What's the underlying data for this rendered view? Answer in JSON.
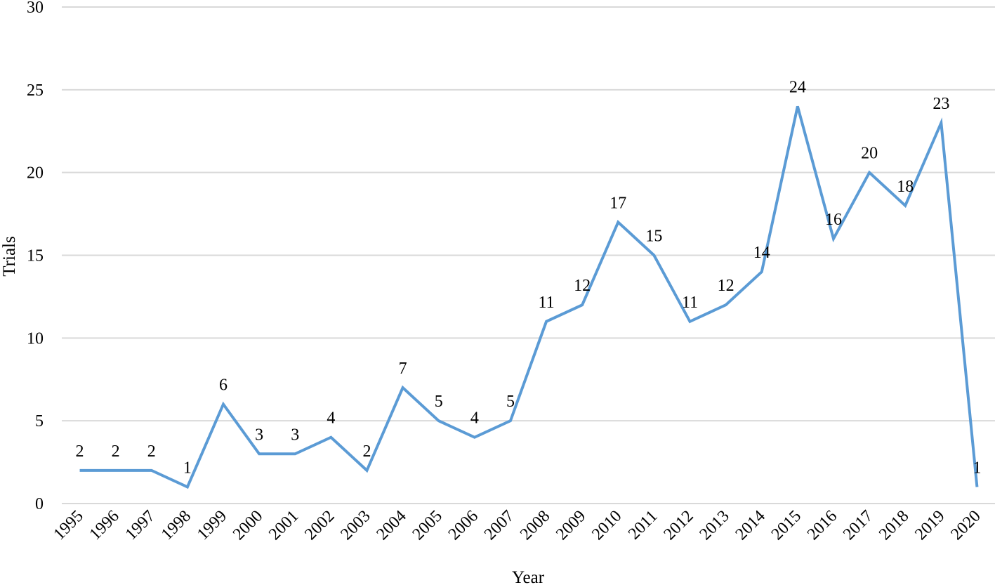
{
  "chart_data": {
    "type": "line",
    "xlabel": "Year",
    "ylabel": "Trials",
    "ylim": [
      0,
      30
    ],
    "yticks": [
      0,
      5,
      10,
      15,
      20,
      25,
      30
    ],
    "grid": true,
    "legend": "none",
    "categories": [
      "1995",
      "1996",
      "1997",
      "1998",
      "1999",
      "2000",
      "2001",
      "2002",
      "2003",
      "2004",
      "2005",
      "2006",
      "2007",
      "2008",
      "2009",
      "2010",
      "2011",
      "2012",
      "2013",
      "2014",
      "2015",
      "2016",
      "2017",
      "2018",
      "2019",
      "2020"
    ],
    "series": [
      {
        "values": [
          2,
          2,
          2,
          1,
          6,
          3,
          3,
          4,
          2,
          7,
          5,
          4,
          5,
          11,
          12,
          17,
          15,
          11,
          12,
          14,
          24,
          16,
          20,
          18,
          23,
          1
        ],
        "color": "#5b9bd5",
        "data_labels": true
      }
    ]
  }
}
